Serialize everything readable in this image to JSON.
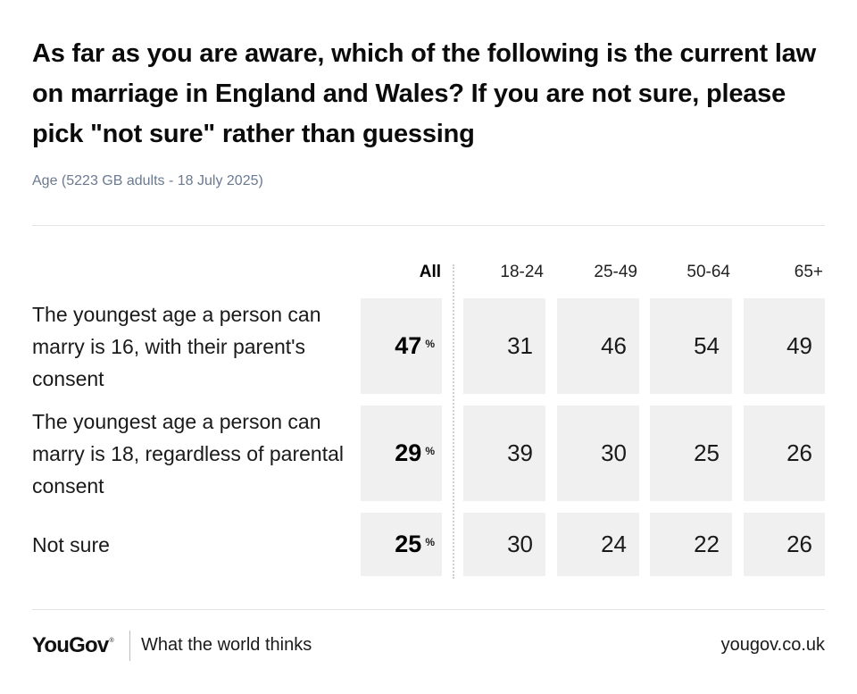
{
  "title": "As far as you are aware, which of the following is the current law on marriage in England and Wales? If you are not sure, please pick \"not sure\" rather than guessing",
  "subtitle": "Age (5223 GB adults - 18 July 2025)",
  "columns": [
    "All",
    "18-24",
    "25-49",
    "50-64",
    "65+"
  ],
  "percent_symbol": "%",
  "rows": [
    {
      "label": "The youngest age a person can marry is 16, with their parent's consent",
      "values": [
        "47",
        "31",
        "46",
        "54",
        "49"
      ]
    },
    {
      "label": "The youngest age a person can marry is 18, regardless of parental consent",
      "values": [
        "29",
        "39",
        "30",
        "25",
        "26"
      ]
    },
    {
      "label": "Not sure",
      "values": [
        "25",
        "30",
        "24",
        "22",
        "26"
      ]
    }
  ],
  "chart_data": {
    "type": "table",
    "title": "As far as you are aware, which of the following is the current law on marriage in England and Wales? If you are not sure, please pick \"not sure\" rather than guessing",
    "subtitle": "Age (5223 GB adults - 18 July 2025)",
    "categories": [
      "All",
      "18-24",
      "25-49",
      "50-64",
      "65+"
    ],
    "series": [
      {
        "name": "The youngest age a person can marry is 16, with their parent's consent",
        "values": [
          47,
          31,
          46,
          54,
          49
        ]
      },
      {
        "name": "The youngest age a person can marry is 18, regardless of parental consent",
        "values": [
          29,
          39,
          30,
          25,
          26
        ]
      },
      {
        "name": "Not sure",
        "values": [
          25,
          30,
          24,
          22,
          26
        ]
      }
    ],
    "unit": "%"
  },
  "footer": {
    "brand": "YouGov",
    "brand_mark": "®",
    "tagline": "What the world thinks",
    "url": "yougov.co.uk"
  },
  "colors": {
    "cell_background": "#f0f0f0",
    "subtitle": "#6b7a90",
    "text": "#111111"
  }
}
